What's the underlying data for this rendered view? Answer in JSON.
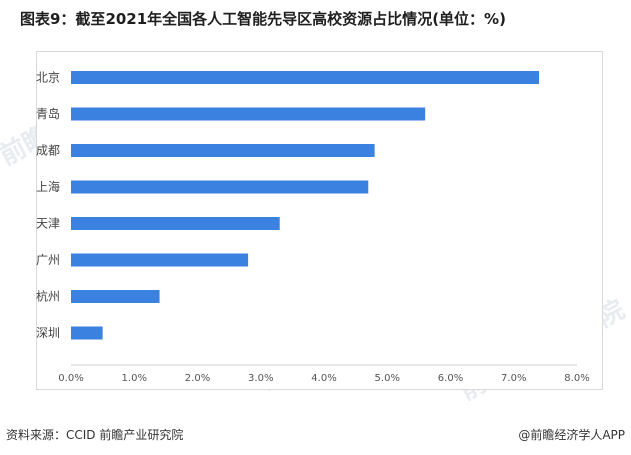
{
  "header": {
    "title": "图表9：截至2021年全国各人工智能先导区高校资源占比情况(单位：%)"
  },
  "footer": {
    "source": "资料来源：CCID 前瞻产业研究院",
    "brand": "@前瞻经济学人APP"
  },
  "watermark": {
    "text": "前瞻产业研究院"
  },
  "chart_data": {
    "type": "bar",
    "orientation": "horizontal",
    "title": "图表9：截至2021年全国各人工智能先导区高校资源占比情况(单位：%)",
    "categories": [
      "北京",
      "青岛",
      "成都",
      "上海",
      "天津",
      "广州",
      "杭州",
      "深圳"
    ],
    "values": [
      7.4,
      5.6,
      4.8,
      4.7,
      3.3,
      2.8,
      1.4,
      0.5
    ],
    "unit": "%",
    "xlim": [
      0,
      8
    ],
    "xticks": [
      "0.0%",
      "1.0%",
      "2.0%",
      "3.0%",
      "4.0%",
      "5.0%",
      "6.0%",
      "7.0%",
      "8.0%"
    ],
    "bar_color": "#3b82e0",
    "grid": false,
    "legend": "none"
  }
}
